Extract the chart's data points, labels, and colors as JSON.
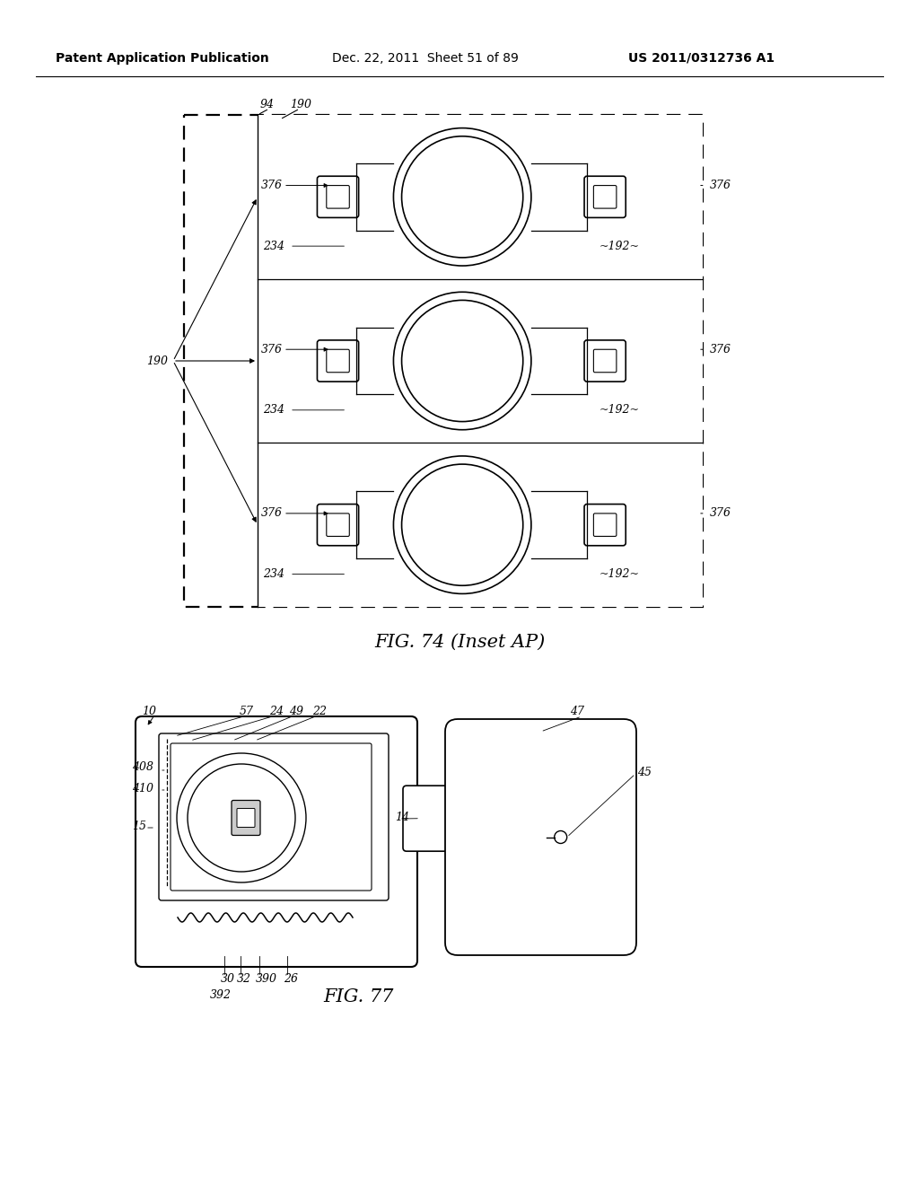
{
  "bg_color": "#ffffff",
  "header_left": "Patent Application Publication",
  "header_mid": "Dec. 22, 2011  Sheet 51 of 89",
  "header_right": "US 2011/0312736 A1",
  "fig74_title": "FIG. 74 (Inset AP)",
  "fig77_title": "FIG. 77"
}
